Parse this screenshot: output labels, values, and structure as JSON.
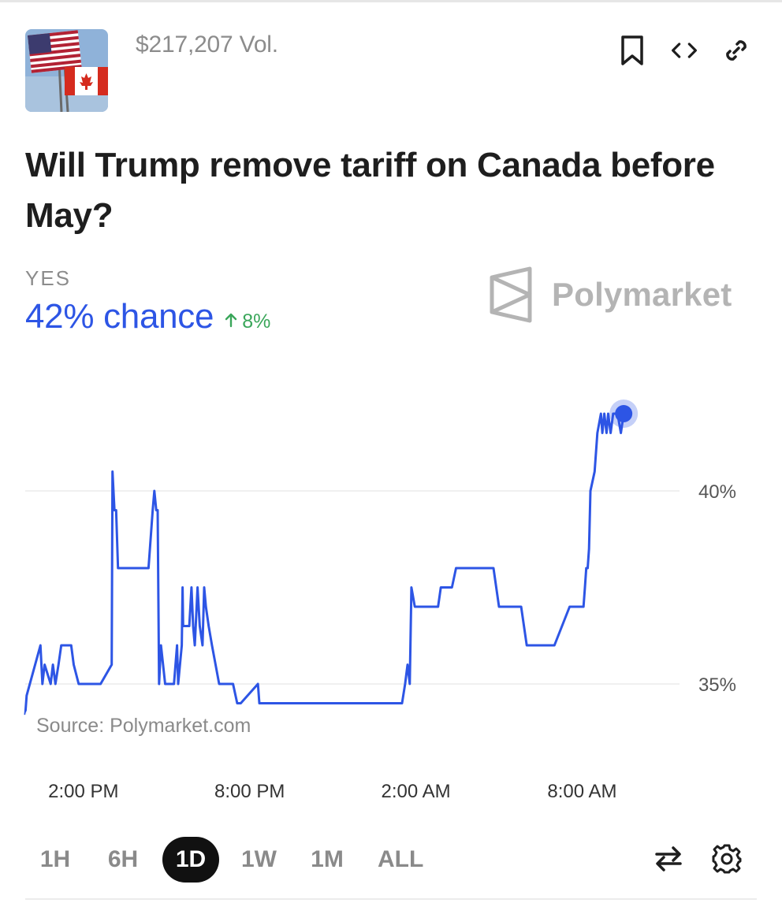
{
  "market": {
    "volume": "$217,207 Vol.",
    "title": "Will Trump remove tariff on Canada before May?",
    "outcome_label": "YES",
    "chance": "42% chance",
    "delta": "8%",
    "brand": "Polymarket"
  },
  "icons": {
    "thumbnail": "us-canada-flags-image",
    "bookmark": "bookmark-icon",
    "embed": "code-icon",
    "link": "link-icon",
    "swap": "swap-arrows-icon",
    "settings": "gear-icon",
    "delta_arrow": "arrow-up-icon"
  },
  "colors": {
    "accent": "#2d55e5",
    "positive": "#3aa65a",
    "muted": "#8c8c8c",
    "active_range_bg": "#111111"
  },
  "chart_data": {
    "type": "line",
    "source": "Source: Polymarket.com",
    "x_ticks": [
      "2:00 PM",
      "8:00 PM",
      "2:00 AM",
      "8:00 AM"
    ],
    "y_ticks": [
      "40%",
      "35%"
    ],
    "ylim": [
      33,
      43
    ],
    "grid": "horizontal",
    "x_domain_hours": [
      11.9,
      35.8
    ],
    "series": [
      {
        "values_x_hours": [
          11.9,
          11.95,
          12.45,
          12.52,
          12.6,
          12.82,
          12.9,
          12.99,
          13.1,
          13.2,
          13.56,
          13.65,
          13.83,
          14.05,
          14.62,
          15.02,
          15.05,
          15.12,
          15.18,
          15.25,
          15.36,
          15.5,
          15.55,
          15.7,
          16.18,
          16.25,
          16.35,
          16.5,
          16.56,
          16.63,
          16.68,
          16.73,
          16.8,
          16.95,
          17.27,
          17.38,
          17.42,
          17.55,
          17.58,
          17.6,
          17.72,
          17.82,
          17.9,
          17.96,
          18.02,
          18.12,
          18.2,
          18.3,
          18.36,
          18.42,
          18.52,
          18.64,
          18.9,
          19.4,
          19.55,
          19.68,
          20.3,
          20.35,
          21.0,
          23.0,
          25.4,
          25.5,
          25.61,
          25.7,
          25.78,
          25.84,
          25.96,
          26.05,
          26.3,
          26.8,
          26.9,
          27.3,
          27.45,
          28.8,
          29.0,
          29.8,
          30.0,
          30.7,
          31.0,
          31.55,
          31.7,
          31.92,
          32.05,
          32.1,
          32.15,
          32.2,
          32.25,
          32.3,
          32.45,
          32.55,
          32.68,
          32.73,
          32.8,
          32.88,
          32.94,
          33.03,
          33.12,
          33.2,
          33.28,
          33.4,
          33.5
        ],
        "values_pct": [
          34.2,
          34.7,
          36.0,
          35.0,
          35.5,
          35.0,
          35.5,
          35.0,
          35.5,
          36.0,
          36.0,
          35.5,
          35.0,
          35.0,
          35.0,
          35.5,
          40.5,
          39.5,
          39.5,
          38.0,
          38.0,
          38.0,
          38.0,
          38.0,
          38.0,
          38.0,
          38.0,
          39.5,
          40.0,
          39.5,
          39.5,
          35.0,
          36.0,
          35.0,
          35.0,
          36.0,
          35.0,
          36.0,
          37.5,
          36.5,
          36.5,
          36.5,
          37.5,
          36.5,
          36.0,
          37.5,
          36.5,
          36.0,
          37.5,
          37.0,
          36.5,
          36.0,
          35.0,
          35.0,
          34.5,
          34.5,
          35.0,
          34.5,
          34.5,
          34.5,
          34.5,
          34.5,
          35.0,
          35.5,
          35.0,
          37.5,
          37.0,
          37.0,
          37.0,
          37.0,
          37.5,
          37.5,
          38.0,
          38.0,
          37.0,
          37.0,
          36.0,
          36.0,
          36.0,
          37.0,
          37.0,
          37.0,
          37.0,
          37.5,
          38.0,
          38.0,
          38.5,
          40.0,
          40.5,
          41.5,
          42.0,
          41.5,
          42.0,
          41.5,
          42.0,
          41.5,
          42.0,
          42.0,
          42.0,
          41.5,
          42.0
        ]
      }
    ]
  },
  "ranges": [
    {
      "label": "1H",
      "active": false
    },
    {
      "label": "6H",
      "active": false
    },
    {
      "label": "1D",
      "active": true
    },
    {
      "label": "1W",
      "active": false
    },
    {
      "label": "1M",
      "active": false
    },
    {
      "label": "ALL",
      "active": false
    }
  ]
}
